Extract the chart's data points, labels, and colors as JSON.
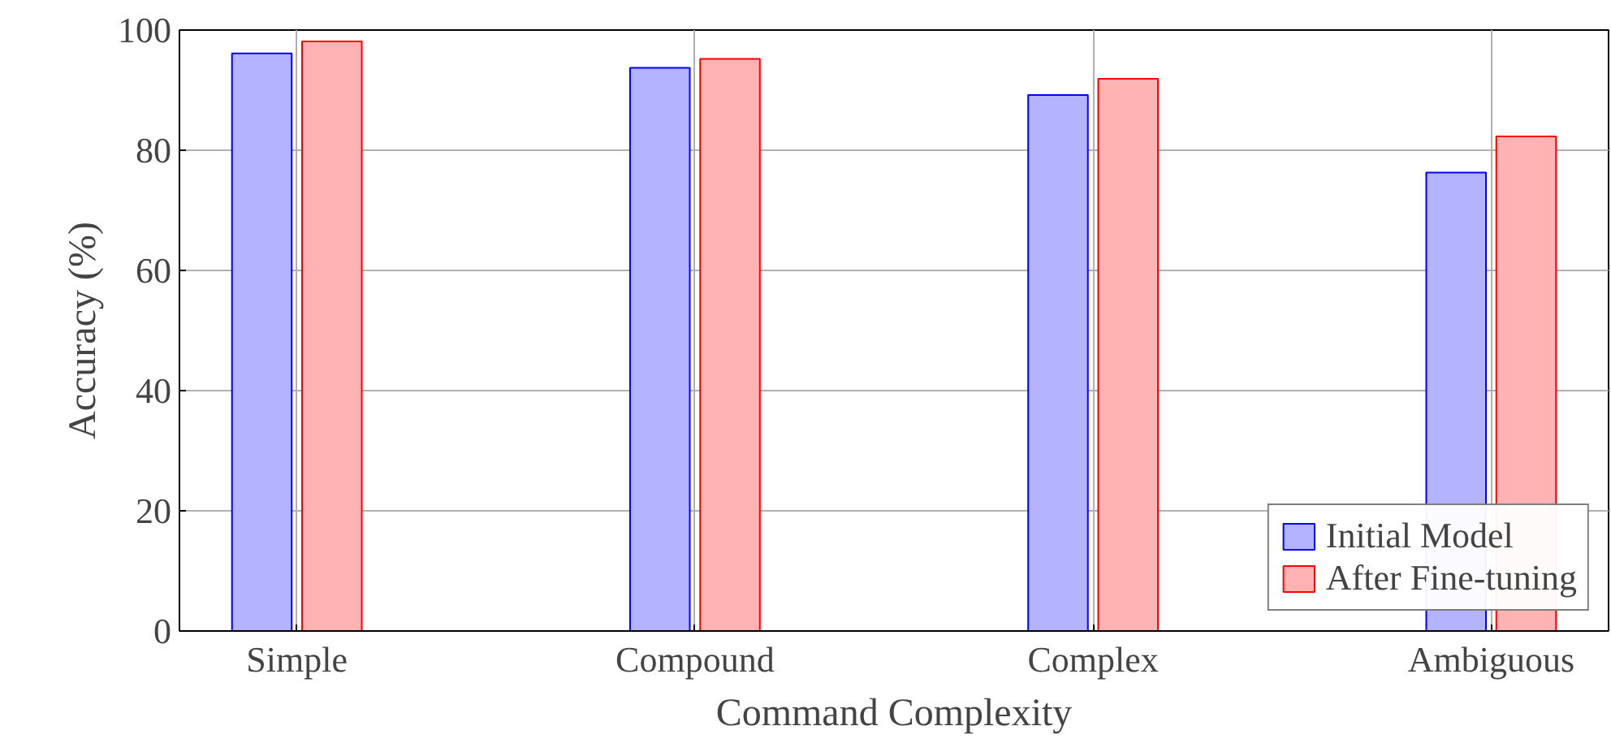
{
  "chart_data": {
    "type": "bar",
    "xlabel": "Command Complexity",
    "ylabel": "Accuracy (%)",
    "categories": [
      "Simple",
      "Compound",
      "Complex",
      "Ambiguous"
    ],
    "series": [
      {
        "name": "Initial Model",
        "color": "#b3b3ff",
        "values": [
          96.1,
          93.7,
          89.2,
          76.3
        ]
      },
      {
        "name": "After Fine-tuning",
        "color": "#ffb3b3",
        "values": [
          98.1,
          95.2,
          91.9,
          82.3
        ]
      }
    ],
    "ylim": [
      0,
      100
    ],
    "yticks": [
      0,
      20,
      40,
      60,
      80,
      100
    ],
    "grid": true,
    "legend": "bottom right"
  }
}
